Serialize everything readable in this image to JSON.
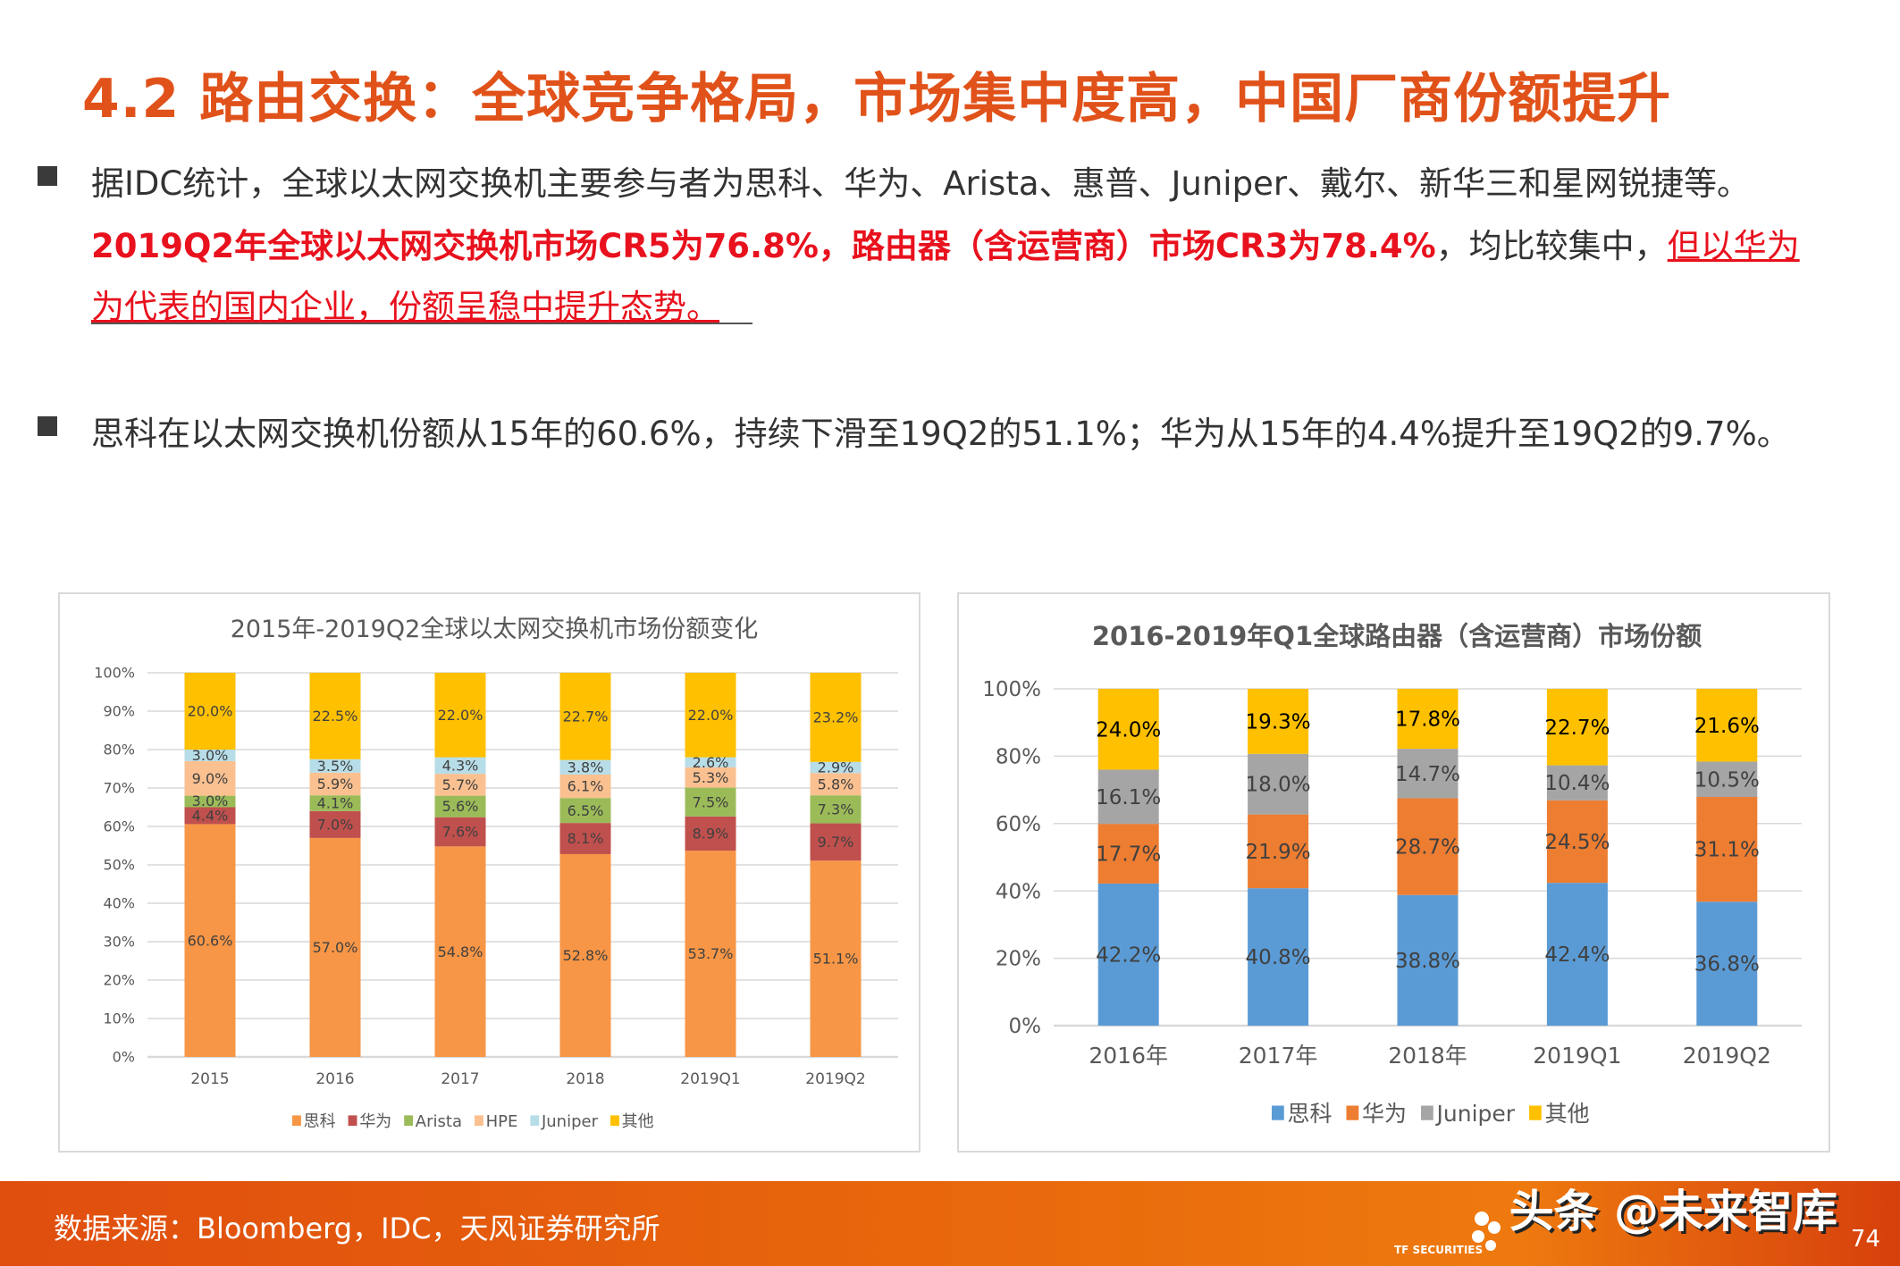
{
  "slide": {
    "title": "4.2 路由交换：全球竞争格局，市场集中度高，中国厂商份额提升",
    "bullet1": {
      "line1": "据IDC统计，全球以太网交换机主要参与者为思科、华为、Arista、惠普、Juniper、戴尔、新华三和星网锐捷等。",
      "line2_red": "2019Q2年全球以太网交换机市场CR5为76.8%，路由器（含运营商）市场CR3为78.4%",
      "line2_plain": "，均比较集中，",
      "line2_underline": "但以华为",
      "line3_underline": "为代表的国内企业，份额呈稳中提升态势。"
    },
    "bullet2": "思科在以太网交换机份额从15年的60.6%，持续下滑至19Q2的51.1%；华为从15年的4.4%提升至19Q2的9.7%。"
  },
  "footer": {
    "source": "数据来源：Bloomberg，IDC，天风证券研究所",
    "watermark": "头条 @未来智库",
    "logo_text": "TF SECURITIES",
    "page": "74"
  },
  "chart_data": [
    {
      "type": "bar",
      "stacked": true,
      "title": "2015年-2019Q2全球以太网交换机市场份额变化",
      "categories": [
        "2015",
        "2016",
        "2017",
        "2018",
        "2019Q1",
        "2019Q2"
      ],
      "yticks": [
        "0%",
        "10%",
        "20%",
        "30%",
        "40%",
        "50%",
        "60%",
        "70%",
        "80%",
        "90%",
        "100%"
      ],
      "ylim": [
        0,
        100
      ],
      "grid": true,
      "legend_position": "bottom",
      "series": [
        {
          "name": "思科",
          "color": "#f79646",
          "values": [
            60.6,
            57.0,
            54.8,
            52.8,
            53.7,
            51.1
          ]
        },
        {
          "name": "华为",
          "color": "#c0504d",
          "values": [
            4.4,
            7.0,
            7.6,
            8.1,
            8.9,
            9.7
          ]
        },
        {
          "name": "Arista",
          "color": "#9bbb59",
          "values": [
            3.0,
            4.1,
            5.6,
            6.5,
            7.5,
            7.3
          ]
        },
        {
          "name": "HPE",
          "color": "#fac090",
          "values": [
            9.0,
            5.9,
            5.7,
            6.1,
            5.3,
            5.8
          ]
        },
        {
          "name": "Juniper",
          "color": "#b7dde8",
          "values": [
            3.0,
            3.5,
            4.3,
            3.8,
            2.6,
            2.9
          ]
        },
        {
          "name": "其他",
          "color": "#ffc000",
          "values": [
            20.0,
            22.5,
            22.0,
            22.7,
            22.0,
            23.2
          ]
        }
      ]
    },
    {
      "type": "bar",
      "stacked": true,
      "title": "2016-2019年Q1全球路由器（含运营商）市场份额",
      "categories": [
        "2016年",
        "2017年",
        "2018年",
        "2019Q1",
        "2019Q2"
      ],
      "yticks": [
        "0%",
        "20%",
        "40%",
        "60%",
        "80%",
        "100%"
      ],
      "ylim": [
        0,
        100
      ],
      "grid": true,
      "legend_position": "bottom",
      "series": [
        {
          "name": "思科",
          "color": "#5b9bd5",
          "values": [
            42.2,
            40.8,
            38.8,
            42.4,
            36.8
          ]
        },
        {
          "name": "华为",
          "color": "#ed7d31",
          "values": [
            17.7,
            21.9,
            28.7,
            24.5,
            31.1
          ]
        },
        {
          "name": "Juniper",
          "color": "#a5a5a5",
          "values": [
            16.1,
            18.0,
            14.7,
            10.4,
            10.5
          ]
        },
        {
          "name": "其他",
          "color": "#ffc000",
          "values": [
            24.0,
            19.3,
            17.8,
            22.7,
            21.6
          ]
        }
      ]
    }
  ]
}
